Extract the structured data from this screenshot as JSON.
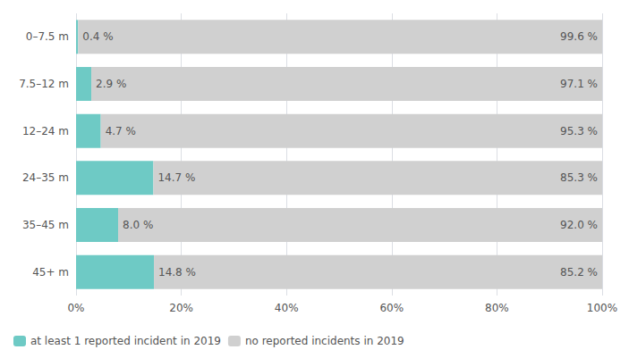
{
  "chart_data": {
    "type": "bar",
    "orientation": "horizontal",
    "stacked": true,
    "categories": [
      "0–7.5 m",
      "7.5–12 m",
      "12–24 m",
      "24–35 m",
      "35–45 m",
      "45+ m"
    ],
    "series": [
      {
        "name": "at least 1 reported incident in 2019",
        "color": "#6ecac5",
        "values": [
          0.4,
          2.9,
          4.7,
          14.7,
          8.0,
          14.8
        ],
        "value_labels": [
          "0.4 %",
          "2.9 %",
          "4.7 %",
          "14.7 %",
          "8.0 %",
          "14.8 %"
        ]
      },
      {
        "name": "no reported incidents in 2019",
        "color": "#d0d0d0",
        "values": [
          99.6,
          97.1,
          95.3,
          85.3,
          92.0,
          85.2
        ],
        "value_labels": [
          "99.6 %",
          "97.1 %",
          "95.3 %",
          "85.3 %",
          "92.0 %",
          "85.2 %"
        ]
      }
    ],
    "xlim": [
      0,
      100
    ],
    "xticks": [
      {
        "value": 0,
        "label": "0%"
      },
      {
        "value": 20,
        "label": "20%"
      },
      {
        "value": 40,
        "label": "40%"
      },
      {
        "value": 60,
        "label": "60%"
      },
      {
        "value": 80,
        "label": "80%"
      },
      {
        "value": 100,
        "label": "100%"
      }
    ],
    "data_labels": true,
    "grid": true,
    "legend": "lower left"
  }
}
